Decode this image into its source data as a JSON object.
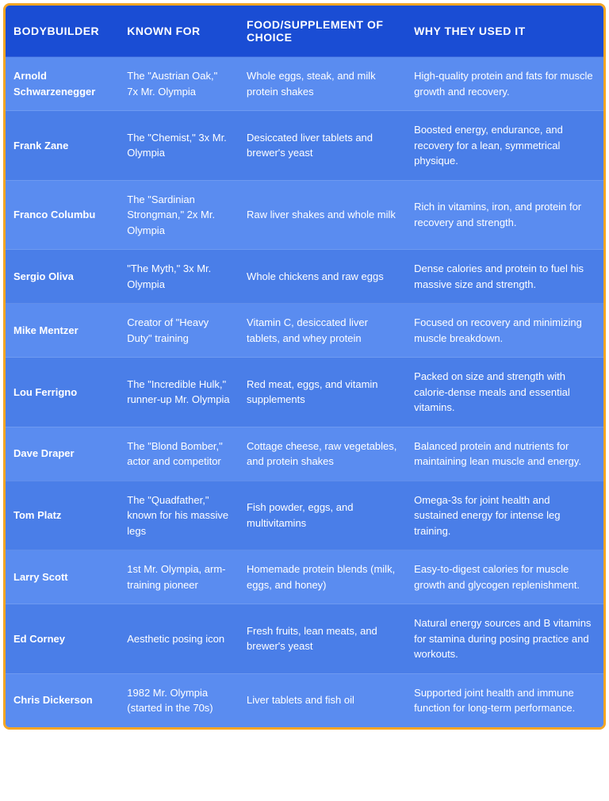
{
  "table": {
    "type": "table",
    "styling": {
      "border_color": "#f5a623",
      "border_width": 3,
      "border_radius": 8,
      "header_background": "#1a4dd4",
      "row_odd_background": "#5a8cf0",
      "row_even_background": "#4a7ee8",
      "text_color": "#ffffff",
      "header_fontsize": 14,
      "cell_fontsize": 13,
      "font_family": "Arial"
    },
    "columns": [
      {
        "label": "BODYBUILDER",
        "width_pct": 19
      },
      {
        "label": "KNOWN FOR",
        "width_pct": 20
      },
      {
        "label": "FOOD/SUPPLEMENT OF CHOICE",
        "width_pct": 28
      },
      {
        "label": "WHY THEY USED IT",
        "width_pct": 33
      }
    ],
    "rows": [
      {
        "bodybuilder": "Arnold Schwarzenegger",
        "known_for": "The \"Austrian Oak,\" 7x Mr. Olympia",
        "food": "Whole eggs, steak, and milk protein shakes",
        "why": "High-quality protein and fats for muscle growth and recovery."
      },
      {
        "bodybuilder": "Frank Zane",
        "known_for": "The \"Chemist,\" 3x Mr. Olympia",
        "food": "Desiccated liver tablets and brewer's yeast",
        "why": "Boosted energy, endurance, and recovery for a lean, symmetrical physique."
      },
      {
        "bodybuilder": "Franco Columbu",
        "known_for": "The \"Sardinian Strongman,\" 2x Mr. Olympia",
        "food": "Raw liver shakes and whole milk",
        "why": "Rich in vitamins, iron, and protein for recovery and strength."
      },
      {
        "bodybuilder": "Sergio Oliva",
        "known_for": "\"The Myth,\" 3x Mr. Olympia",
        "food": "Whole chickens and raw eggs",
        "why": "Dense calories and protein to fuel his massive size and strength."
      },
      {
        "bodybuilder": "Mike Mentzer",
        "known_for": "Creator of \"Heavy Duty\" training",
        "food": "Vitamin C, desiccated liver tablets, and whey protein",
        "why": "Focused on recovery and minimizing muscle breakdown."
      },
      {
        "bodybuilder": "Lou Ferrigno",
        "known_for": "The \"Incredible Hulk,\" runner-up Mr. Olympia",
        "food": "Red meat, eggs, and vitamin supplements",
        "why": "Packed on size and strength with calorie-dense meals and essential vitamins."
      },
      {
        "bodybuilder": "Dave Draper",
        "known_for": "The \"Blond Bomber,\" actor and competitor",
        "food": "Cottage cheese, raw vegetables, and protein shakes",
        "why": "Balanced protein and nutrients for maintaining lean muscle and energy."
      },
      {
        "bodybuilder": "Tom Platz",
        "known_for": "The \"Quadfather,\" known for his massive legs",
        "food": "Fish powder, eggs, and multivitamins",
        "why": "Omega-3s for joint health and sustained energy for intense leg training."
      },
      {
        "bodybuilder": "Larry Scott",
        "known_for": "1st Mr. Olympia, arm-training pioneer",
        "food": "Homemade protein blends (milk, eggs, and honey)",
        "why": "Easy-to-digest calories for muscle growth and glycogen replenishment."
      },
      {
        "bodybuilder": "Ed Corney",
        "known_for": "Aesthetic posing icon",
        "food": "Fresh fruits, lean meats, and brewer's yeast",
        "why": "Natural energy sources and B vitamins for stamina during posing practice and workouts."
      },
      {
        "bodybuilder": "Chris Dickerson",
        "known_for": "1982 Mr. Olympia (started in the 70s)",
        "food": "Liver tablets and fish oil",
        "why": "Supported joint health and immune function for long-term performance."
      }
    ]
  }
}
